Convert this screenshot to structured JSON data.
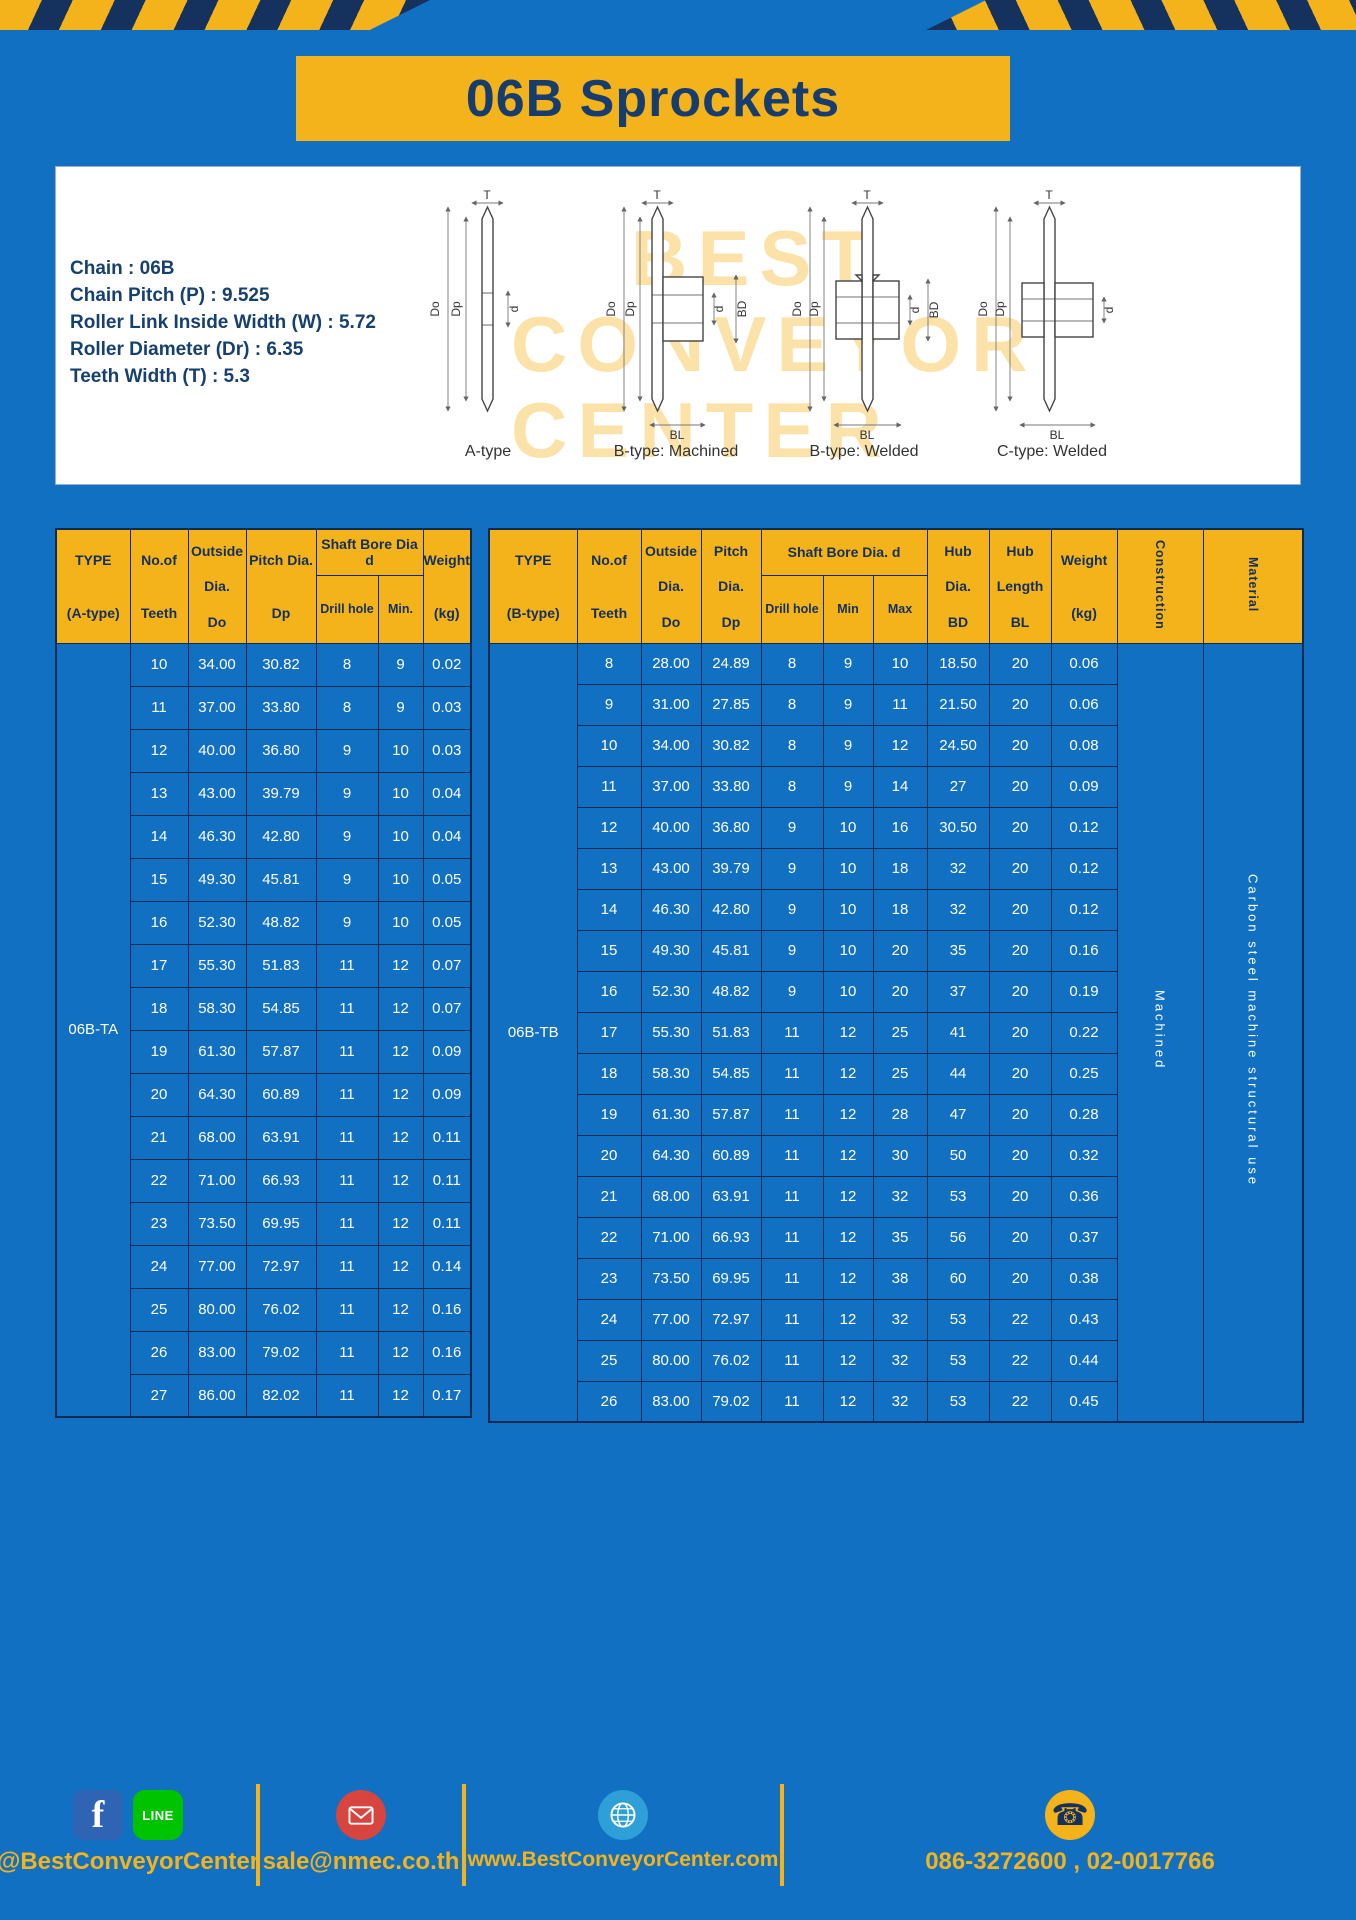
{
  "page": {
    "title": "06B Sprockets"
  },
  "colors": {
    "background_blue": "#1170c2",
    "accent_yellow": "#f4b31b",
    "navy": "#15325f",
    "white": "#ffffff"
  },
  "specs": {
    "lines": [
      "Chain : 06B",
      "Chain Pitch (P) : 9.525",
      "Roller Link Inside Width (W) : 5.72",
      "Roller Diameter (Dr) : 6.35",
      "Teeth Width (T) : 5.3"
    ]
  },
  "watermark": {
    "lines": [
      "BEST",
      "CONVEYOR",
      "CENTER"
    ]
  },
  "dims": {
    "T": "T",
    "Do": "Do",
    "Dp": "Dp",
    "d": "d",
    "BD": "BD",
    "BL": "BL"
  },
  "diagrams": [
    {
      "caption": "A-type"
    },
    {
      "caption": "B-type: Machined"
    },
    {
      "caption": "B-type: Welded"
    },
    {
      "caption": "C-type: Welded"
    }
  ],
  "table_a": {
    "type_label": "06B-TA",
    "header": {
      "type": [
        "TYPE",
        "(A-type)"
      ],
      "teeth": [
        "No.of",
        "Teeth"
      ],
      "outside": [
        "Outside",
        "Dia.",
        "Do"
      ],
      "pitch": [
        "Pitch Dia.",
        "Dp"
      ],
      "bore_group": "Shaft Bore Dia d",
      "bore_sub": [
        "Drill hole",
        "Min."
      ],
      "weight": [
        "Weight",
        "(kg)"
      ]
    },
    "rows": [
      [
        "10",
        "34.00",
        "30.82",
        "8",
        "9",
        "0.02"
      ],
      [
        "11",
        "37.00",
        "33.80",
        "8",
        "9",
        "0.03"
      ],
      [
        "12",
        "40.00",
        "36.80",
        "9",
        "10",
        "0.03"
      ],
      [
        "13",
        "43.00",
        "39.79",
        "9",
        "10",
        "0.04"
      ],
      [
        "14",
        "46.30",
        "42.80",
        "9",
        "10",
        "0.04"
      ],
      [
        "15",
        "49.30",
        "45.81",
        "9",
        "10",
        "0.05"
      ],
      [
        "16",
        "52.30",
        "48.82",
        "9",
        "10",
        "0.05"
      ],
      [
        "17",
        "55.30",
        "51.83",
        "11",
        "12",
        "0.07"
      ],
      [
        "18",
        "58.30",
        "54.85",
        "11",
        "12",
        "0.07"
      ],
      [
        "19",
        "61.30",
        "57.87",
        "11",
        "12",
        "0.09"
      ],
      [
        "20",
        "64.30",
        "60.89",
        "11",
        "12",
        "0.09"
      ],
      [
        "21",
        "68.00",
        "63.91",
        "11",
        "12",
        "0.11"
      ],
      [
        "22",
        "71.00",
        "66.93",
        "11",
        "12",
        "0.11"
      ],
      [
        "23",
        "73.50",
        "69.95",
        "11",
        "12",
        "0.11"
      ],
      [
        "24",
        "77.00",
        "72.97",
        "11",
        "12",
        "0.14"
      ],
      [
        "25",
        "80.00",
        "76.02",
        "11",
        "12",
        "0.16"
      ],
      [
        "26",
        "83.00",
        "79.02",
        "11",
        "12",
        "0.16"
      ],
      [
        "27",
        "86.00",
        "82.02",
        "11",
        "12",
        "0.17"
      ]
    ]
  },
  "table_b": {
    "type_label": "06B-TB",
    "construction_value": "Machined",
    "material_value": "Carbon steel machine structural use",
    "header": {
      "type": [
        "TYPE",
        "(B-type)"
      ],
      "teeth": [
        "No.of",
        "Teeth"
      ],
      "outside": [
        "Outside",
        "Dia.",
        "Do"
      ],
      "pitch": [
        "Pitch",
        "Dia.",
        "Dp"
      ],
      "bore_group": "Shaft Bore Dia. d",
      "bore_sub": [
        "Drill hole",
        "Min",
        "Max"
      ],
      "hub_dia": [
        "Hub",
        "Dia.",
        "BD"
      ],
      "hub_len": [
        "Hub",
        "Length",
        "BL"
      ],
      "weight": [
        "Weight",
        "(kg)"
      ],
      "construction": "Construction",
      "material": "Material"
    },
    "rows": [
      [
        "8",
        "28.00",
        "24.89",
        "8",
        "9",
        "10",
        "18.50",
        "20",
        "0.06"
      ],
      [
        "9",
        "31.00",
        "27.85",
        "8",
        "9",
        "11",
        "21.50",
        "20",
        "0.06"
      ],
      [
        "10",
        "34.00",
        "30.82",
        "8",
        "9",
        "12",
        "24.50",
        "20",
        "0.08"
      ],
      [
        "11",
        "37.00",
        "33.80",
        "8",
        "9",
        "14",
        "27",
        "20",
        "0.09"
      ],
      [
        "12",
        "40.00",
        "36.80",
        "9",
        "10",
        "16",
        "30.50",
        "20",
        "0.12"
      ],
      [
        "13",
        "43.00",
        "39.79",
        "9",
        "10",
        "18",
        "32",
        "20",
        "0.12"
      ],
      [
        "14",
        "46.30",
        "42.80",
        "9",
        "10",
        "18",
        "32",
        "20",
        "0.12"
      ],
      [
        "15",
        "49.30",
        "45.81",
        "9",
        "10",
        "20",
        "35",
        "20",
        "0.16"
      ],
      [
        "16",
        "52.30",
        "48.82",
        "9",
        "10",
        "20",
        "37",
        "20",
        "0.19"
      ],
      [
        "17",
        "55.30",
        "51.83",
        "11",
        "12",
        "25",
        "41",
        "20",
        "0.22"
      ],
      [
        "18",
        "58.30",
        "54.85",
        "11",
        "12",
        "25",
        "44",
        "20",
        "0.25"
      ],
      [
        "19",
        "61.30",
        "57.87",
        "11",
        "12",
        "28",
        "47",
        "20",
        "0.28"
      ],
      [
        "20",
        "64.30",
        "60.89",
        "11",
        "12",
        "30",
        "50",
        "20",
        "0.32"
      ],
      [
        "21",
        "68.00",
        "63.91",
        "11",
        "12",
        "32",
        "53",
        "20",
        "0.36"
      ],
      [
        "22",
        "71.00",
        "66.93",
        "11",
        "12",
        "35",
        "56",
        "20",
        "0.37"
      ],
      [
        "23",
        "73.50",
        "69.95",
        "11",
        "12",
        "38",
        "60",
        "20",
        "0.38"
      ],
      [
        "24",
        "77.00",
        "72.97",
        "11",
        "12",
        "32",
        "53",
        "22",
        "0.43"
      ],
      [
        "25",
        "80.00",
        "76.02",
        "11",
        "12",
        "32",
        "53",
        "22",
        "0.44"
      ],
      [
        "26",
        "83.00",
        "79.02",
        "11",
        "12",
        "32",
        "53",
        "22",
        "0.45"
      ]
    ]
  },
  "footer": {
    "facebook_letter": "f",
    "line_label": "LINE",
    "social_handle": "@BestConveyorCenter",
    "email": "sale@nmec.co.th",
    "website": "www.BestConveyorCenter.com",
    "phones": "086-3272600 , 02-0017766"
  }
}
